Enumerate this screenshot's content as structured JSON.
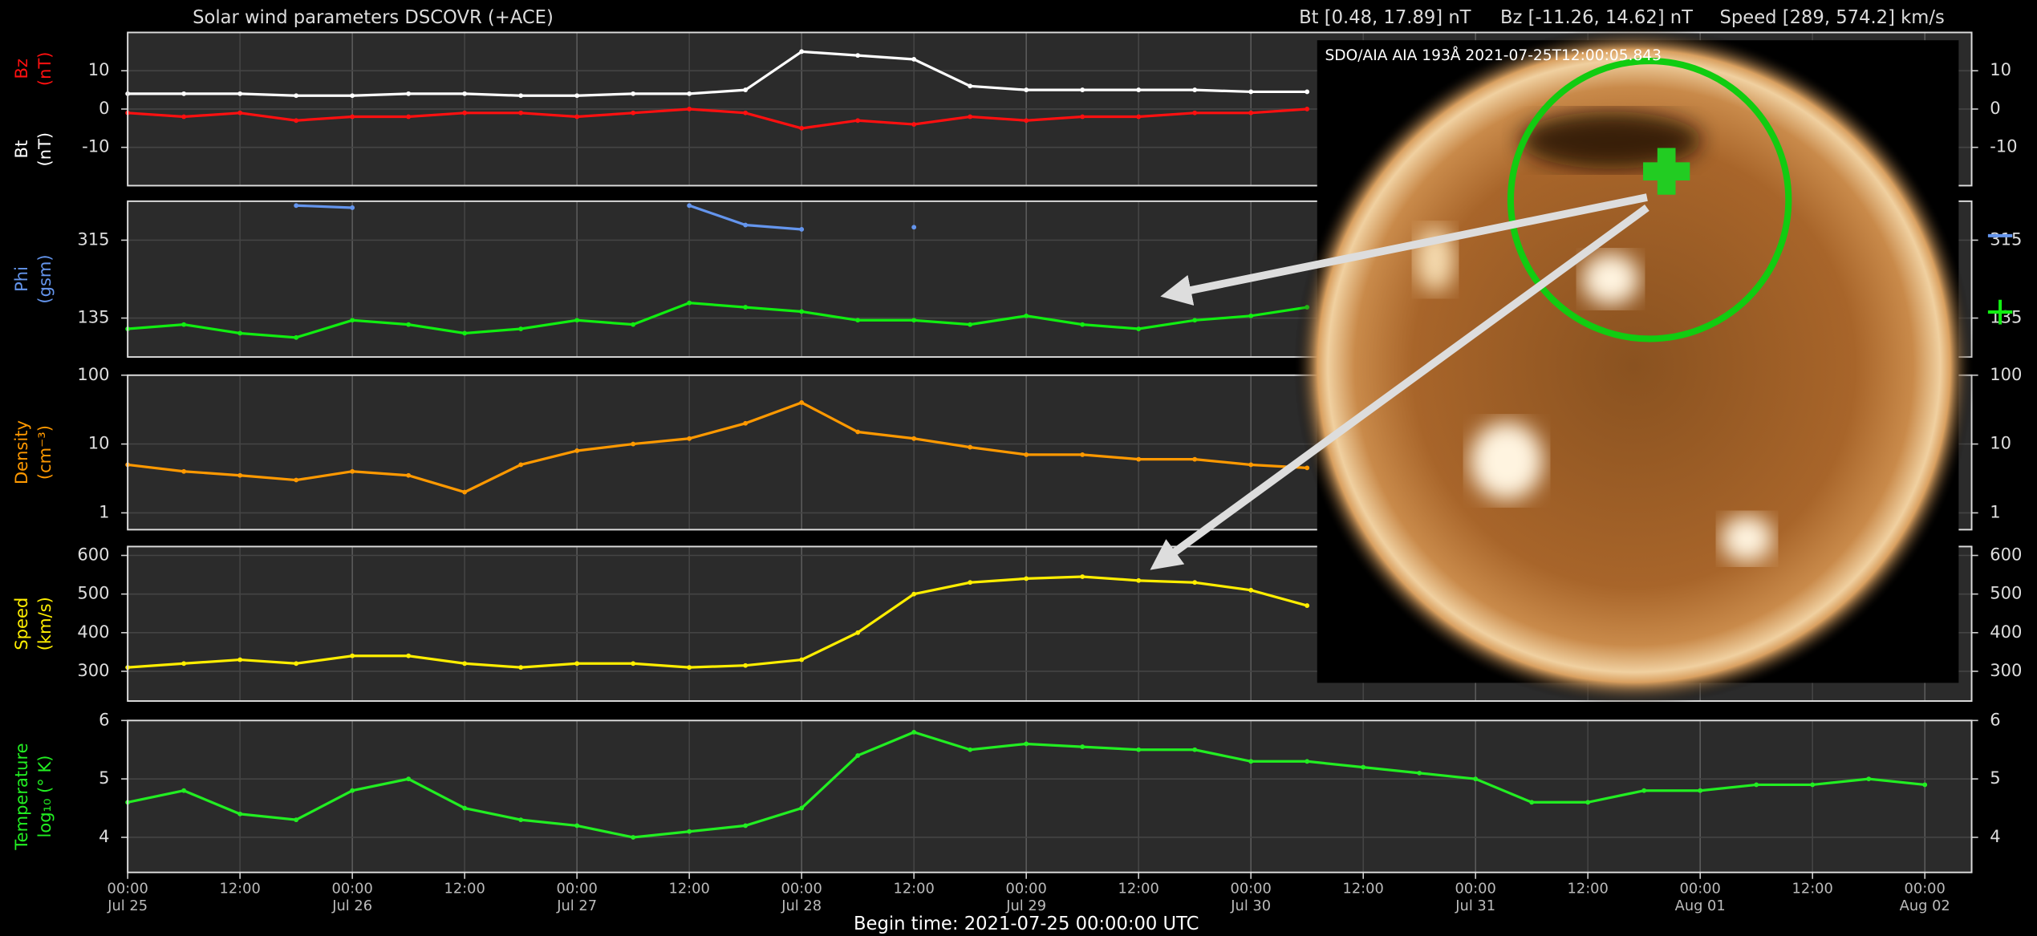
{
  "header": {
    "title": "Solar wind parameters DSCOVR (+ACE)",
    "stats": [
      "Bt [0.48, 17.89] nT",
      "Bz [-11.26, 14.62] nT",
      "Speed [289, 574.2] km/s"
    ],
    "begin_time": "Begin time: 2021-07-25 00:00:00 UTC"
  },
  "inset": {
    "caption": "SDO/AIA AIA 193Å 2021-07-25T12:00:05.843"
  },
  "chart_data": [
    {
      "type": "scatter",
      "xlim": [
        0,
        197
      ],
      "xticks": [
        0,
        12,
        24,
        36,
        48,
        60,
        72,
        84,
        96,
        108,
        120,
        132,
        144,
        156,
        168,
        180,
        192
      ],
      "x": [
        0,
        6,
        12,
        18,
        24,
        30,
        36,
        42,
        48,
        54,
        60,
        66,
        72,
        78,
        84,
        90,
        96,
        102,
        108,
        114,
        120,
        126,
        132,
        138,
        144,
        150,
        156,
        162,
        168,
        174,
        180,
        186,
        192
      ],
      "ylim": [
        -20,
        20
      ],
      "yticks": [
        -10,
        0,
        10
      ],
      "grid": true,
      "series": [
        {
          "name": "Bz",
          "unit": "(nT)",
          "color": "#ff1010",
          "values": [
            -1,
            -2,
            -1,
            -3,
            -2,
            -2,
            -1,
            -1,
            -2,
            -1,
            0,
            -1,
            -5,
            -3,
            -4,
            -2,
            -3,
            -2,
            -2,
            -1,
            -1,
            0,
            null,
            null,
            null,
            null,
            null,
            null,
            null,
            null,
            null,
            null,
            null
          ]
        },
        {
          "name": "Bt",
          "unit": "(nT)",
          "color": "#ffffff",
          "values": [
            4,
            4,
            4,
            3.5,
            3.5,
            4,
            4,
            3.5,
            3.5,
            4,
            4,
            5,
            15,
            14,
            13,
            6,
            5,
            5,
            5,
            5,
            4.5,
            4.5,
            null,
            null,
            null,
            null,
            null,
            null,
            null,
            null,
            null,
            null,
            null
          ]
        }
      ]
    },
    {
      "type": "scatter",
      "xlim": [
        0,
        197
      ],
      "xticks": [
        0,
        12,
        24,
        36,
        48,
        60,
        72,
        84,
        96,
        108,
        120,
        132,
        144,
        156,
        168,
        180,
        192
      ],
      "x": [
        0,
        6,
        12,
        18,
        24,
        30,
        36,
        42,
        48,
        54,
        60,
        66,
        72,
        78,
        84,
        90,
        96,
        102,
        108,
        114,
        120,
        126,
        132,
        138,
        144,
        150,
        156,
        162,
        168,
        174,
        180,
        186,
        192
      ],
      "ylim": [
        45,
        405
      ],
      "yticks": [
        135,
        315
      ],
      "grid": true,
      "ylabel": [
        "Phi",
        "(gsm)"
      ],
      "label_color": "#6495ed",
      "series": [
        {
          "name": "−",
          "color": "#6495ed",
          "values": [
            null,
            null,
            null,
            395,
            390,
            null,
            null,
            null,
            null,
            null,
            395,
            350,
            340,
            null,
            345,
            null,
            null,
            null,
            null,
            null,
            null,
            null,
            null,
            null,
            null,
            null,
            null,
            null,
            null,
            null,
            null,
            null,
            null
          ]
        },
        {
          "name": "+",
          "color": "#11ee11",
          "values": [
            110,
            120,
            100,
            90,
            130,
            120,
            100,
            110,
            130,
            120,
            170,
            160,
            150,
            130,
            130,
            120,
            140,
            120,
            110,
            130,
            140,
            160,
            null,
            null,
            null,
            null,
            null,
            null,
            null,
            null,
            null,
            null,
            null
          ]
        }
      ]
    },
    {
      "type": "scatter",
      "xlim": [
        0,
        197
      ],
      "xticks": [
        0,
        12,
        24,
        36,
        48,
        60,
        72,
        84,
        96,
        108,
        120,
        132,
        144,
        156,
        168,
        180,
        192
      ],
      "x": [
        0,
        6,
        12,
        18,
        24,
        30,
        36,
        42,
        48,
        54,
        60,
        66,
        72,
        78,
        84,
        90,
        96,
        102,
        108,
        114,
        120,
        126,
        132,
        138,
        144,
        150,
        156,
        162,
        168,
        174,
        180,
        186,
        192
      ],
      "log": true,
      "ylim": [
        0.57,
        100
      ],
      "yticks": [
        1,
        10,
        100
      ],
      "grid": true,
      "ylabel": [
        "Density",
        "(cm⁻³)"
      ],
      "label_color": "#ff9900",
      "series": [
        {
          "color": "#ff9900",
          "values": [
            5,
            4,
            3.5,
            3,
            4,
            3.5,
            2,
            5,
            8,
            10,
            12,
            20,
            40,
            15,
            12,
            9,
            7,
            7,
            6,
            6,
            5,
            4.5,
            null,
            null,
            null,
            null,
            null,
            null,
            null,
            null,
            null,
            null,
            null
          ]
        }
      ]
    },
    {
      "type": "scatter",
      "xlim": [
        0,
        197
      ],
      "xticks": [
        0,
        12,
        24,
        36,
        48,
        60,
        72,
        84,
        96,
        108,
        120,
        132,
        144,
        156,
        168,
        180,
        192
      ],
      "x": [
        0,
        6,
        12,
        18,
        24,
        30,
        36,
        42,
        48,
        54,
        60,
        66,
        72,
        78,
        84,
        90,
        96,
        102,
        108,
        114,
        120,
        126,
        132,
        138,
        144,
        150,
        156,
        162,
        168,
        174,
        180,
        186,
        192
      ],
      "ylim": [
        223,
        623
      ],
      "yticks": [
        300,
        400,
        500,
        600
      ],
      "grid": true,
      "ylabel": [
        "Speed",
        "(km/s)"
      ],
      "label_color": "#ffee00",
      "series": [
        {
          "color": "#ffee00",
          "values": [
            310,
            320,
            330,
            320,
            340,
            340,
            320,
            310,
            320,
            320,
            310,
            315,
            330,
            400,
            500,
            530,
            540,
            545,
            535,
            530,
            510,
            470,
            null,
            null,
            null,
            null,
            null,
            null,
            null,
            null,
            null,
            null,
            null
          ]
        }
      ]
    },
    {
      "type": "scatter",
      "xlim": [
        0,
        197
      ],
      "xticks": [
        {
          "value": 0,
          "label": "00:00",
          "date": "Jul 25"
        },
        {
          "value": 12,
          "label": "12:00"
        },
        {
          "value": 24,
          "label": "00:00",
          "date": "Jul 26"
        },
        {
          "value": 36,
          "label": "12:00"
        },
        {
          "value": 48,
          "label": "00:00",
          "date": "Jul 27"
        },
        {
          "value": 60,
          "label": "12:00"
        },
        {
          "value": 72,
          "label": "00:00",
          "date": "Jul 28"
        },
        {
          "value": 84,
          "label": "12:00"
        },
        {
          "value": 96,
          "label": "00:00",
          "date": "Jul 29"
        },
        {
          "value": 108,
          "label": "12:00"
        },
        {
          "value": 120,
          "label": "00:00",
          "date": "Jul 30"
        },
        {
          "value": 132,
          "label": "12:00"
        },
        {
          "value": 144,
          "label": "00:00",
          "date": "Jul 31"
        },
        {
          "value": 156,
          "label": "12:00"
        },
        {
          "value": 168,
          "label": "00:00",
          "date": "Aug 01"
        },
        {
          "value": 180,
          "label": "12:00"
        },
        {
          "value": 192,
          "label": "00:00",
          "date": "Aug 02"
        }
      ],
      "x": [
        0,
        6,
        12,
        18,
        24,
        30,
        36,
        42,
        48,
        54,
        60,
        66,
        72,
        78,
        84,
        90,
        96,
        102,
        108,
        114,
        120,
        126,
        132,
        138,
        144,
        150,
        156,
        162,
        168,
        174,
        180,
        186,
        192
      ],
      "ylim": [
        3.4,
        6
      ],
      "yticks": [
        4,
        5,
        6
      ],
      "grid": true,
      "ylabel": [
        "Temperature",
        "log₁₀ (° K)"
      ],
      "label_color": "#22ee22",
      "series": [
        {
          "color": "#22ee22",
          "values": [
            4.6,
            4.8,
            4.4,
            4.3,
            4.8,
            5.0,
            4.5,
            4.3,
            4.2,
            4.0,
            4.1,
            4.2,
            4.5,
            5.4,
            5.8,
            5.5,
            5.6,
            5.55,
            5.5,
            5.5,
            5.3,
            5.3,
            5.2,
            5.1,
            5.0,
            4.6,
            4.6,
            4.8,
            4.8,
            4.9,
            4.9,
            5.0,
            4.9
          ]
        }
      ]
    }
  ]
}
